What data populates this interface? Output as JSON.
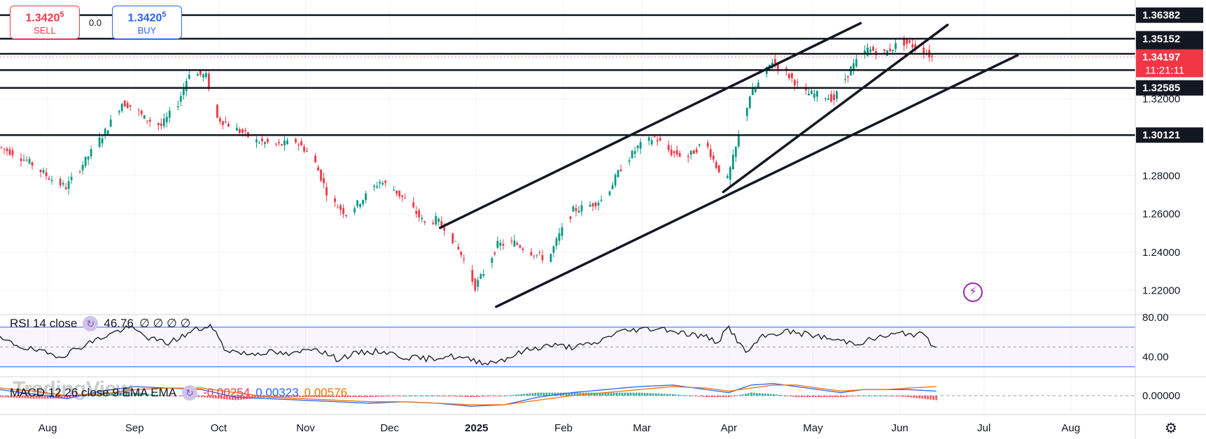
{
  "trade": {
    "sell_price": "1.3420",
    "sell_sup": "5",
    "sell_label": "SELL",
    "buy_price": "1.3420",
    "buy_sup": "5",
    "buy_label": "BUY",
    "spread": "0.0"
  },
  "watermark": "TradingView",
  "chart_data": {
    "type": "candlestick",
    "symbol_price_axis": {
      "ticks": [
        "1.22000",
        "1.24000",
        "1.26000",
        "1.28000",
        "1.32000"
      ],
      "tick_values": [
        1.22,
        1.24,
        1.26,
        1.28,
        1.32
      ],
      "ylim": [
        1.2075,
        1.371
      ]
    },
    "x_axis": {
      "labels": [
        "Aug",
        "Sep",
        "Oct",
        "Nov",
        "Dec",
        "2025",
        "Feb",
        "Mar",
        "Apr",
        "May",
        "Jun",
        "Jul",
        "Aug"
      ],
      "label_days": [
        17,
        48,
        78,
        109,
        139,
        170,
        201,
        229,
        260,
        290,
        321,
        351,
        382
      ],
      "xlim": [
        0,
        405
      ]
    },
    "horizontal_levels": [
      {
        "value": 1.36382,
        "label": "1.36382",
        "style": "dark"
      },
      {
        "value": 1.35152,
        "label": "1.35152",
        "style": "dark"
      },
      {
        "value": 1.34363,
        "label": "1.34363",
        "style": "dark"
      },
      {
        "value": 1.33515,
        "label": "",
        "style": "line-only"
      },
      {
        "value": 1.32585,
        "label": "1.32585",
        "style": "dark"
      },
      {
        "value": 1.30121,
        "label": "1.30121",
        "style": "dark"
      }
    ],
    "current_price": {
      "value": 1.34197,
      "label": "1.34197",
      "countdown": "11:21:11",
      "color": "#f23645"
    },
    "trendlines": [
      {
        "from": [
          157,
          1.2528
        ],
        "to": [
          307,
          1.3596
        ]
      },
      {
        "from": [
          177,
          1.2116
        ],
        "to": [
          363,
          1.3429
        ]
      },
      {
        "from": [
          258,
          1.2715
        ],
        "to": [
          338,
          1.3587
        ]
      }
    ],
    "price_path": {
      "days": [
        0,
        5,
        12,
        18,
        24,
        30,
        38,
        44,
        48,
        52,
        58,
        64,
        68,
        74,
        78,
        84,
        92,
        100,
        106,
        112,
        118,
        124,
        130,
        136,
        140,
        146,
        152,
        156,
        160,
        166,
        170,
        174,
        178,
        184,
        190,
        196,
        200,
        205,
        210,
        216,
        222,
        228,
        234,
        240,
        246,
        252,
        256,
        260,
        264,
        268,
        272,
        276,
        282,
        288,
        294,
        298,
        304,
        310,
        316,
        322,
        328,
        333
      ],
      "values": [
        1.295,
        1.292,
        1.286,
        1.279,
        1.274,
        1.286,
        1.303,
        1.318,
        1.316,
        1.31,
        1.306,
        1.318,
        1.334,
        1.332,
        1.31,
        1.305,
        1.298,
        1.296,
        1.298,
        1.29,
        1.268,
        1.26,
        1.268,
        1.277,
        1.274,
        1.266,
        1.255,
        1.257,
        1.252,
        1.236,
        1.222,
        1.232,
        1.244,
        1.245,
        1.24,
        1.236,
        1.249,
        1.262,
        1.264,
        1.268,
        1.284,
        1.295,
        1.3,
        1.292,
        1.29,
        1.298,
        1.285,
        1.278,
        1.3,
        1.322,
        1.33,
        1.34,
        1.332,
        1.323,
        1.322,
        1.32,
        1.336,
        1.346,
        1.344,
        1.35,
        1.347,
        1.342
      ]
    },
    "rsi": {
      "legend": "RSI 14 close",
      "value": "46.76",
      "extra": "∅ ∅ ∅ ∅",
      "ticks": [
        "80.00",
        "40.00"
      ],
      "tick_values": [
        80,
        40
      ],
      "ylim": [
        20,
        82
      ],
      "bands": [
        70,
        30
      ],
      "mid": 50,
      "days": [
        0,
        8,
        16,
        22,
        30,
        40,
        46,
        54,
        60,
        66,
        70,
        76,
        80,
        88,
        96,
        104,
        112,
        120,
        128,
        136,
        144,
        152,
        160,
        168,
        174,
        180,
        188,
        196,
        204,
        212,
        220,
        228,
        236,
        244,
        252,
        256,
        260,
        266,
        272,
        280,
        290,
        298,
        306,
        314,
        322,
        330,
        334
      ],
      "values": [
        58,
        50,
        44,
        41,
        52,
        64,
        70,
        58,
        54,
        62,
        68,
        70,
        48,
        43,
        45,
        42,
        50,
        38,
        44,
        46,
        40,
        38,
        41,
        37,
        34,
        38,
        47,
        52,
        50,
        53,
        65,
        68,
        69,
        64,
        60,
        55,
        70,
        44,
        60,
        66,
        62,
        57,
        54,
        60,
        64,
        62,
        47
      ]
    },
    "macd": {
      "legend": "MACD 12 26 close 9 EMA EMA",
      "value_hist": "-0.00254",
      "value_macd": "0.00323",
      "value_signal": "0.00576",
      "ticks": [
        "0.00000"
      ],
      "tick_values": [
        0
      ],
      "ylim": [
        -0.012,
        0.012
      ],
      "days": [
        0,
        12,
        24,
        36,
        48,
        60,
        72,
        84,
        96,
        108,
        120,
        132,
        144,
        156,
        168,
        180,
        192,
        204,
        216,
        228,
        240,
        252,
        260,
        268,
        276,
        284,
        292,
        300,
        308,
        316,
        324,
        334
      ],
      "macd_values": [
        0.004,
        0.001,
        -0.002,
        0.003,
        0.006,
        0.005,
        0.004,
        -0.001,
        -0.002,
        -0.003,
        -0.004,
        -0.005,
        -0.004,
        -0.005,
        -0.007,
        -0.006,
        -0.001,
        0.002,
        0.004,
        0.006,
        0.007,
        0.004,
        0.002,
        0.007,
        0.008,
        0.006,
        0.004,
        0.002,
        0.004,
        0.004,
        0.004,
        0.003
      ],
      "signal_values": [
        0.005,
        0.003,
        0.0,
        0.001,
        0.004,
        0.005,
        0.005,
        0.002,
        -0.001,
        -0.002,
        -0.003,
        -0.004,
        -0.004,
        -0.005,
        -0.006,
        -0.006,
        -0.003,
        0.0,
        0.002,
        0.004,
        0.006,
        0.005,
        0.003,
        0.005,
        0.007,
        0.007,
        0.005,
        0.003,
        0.004,
        0.004,
        0.005,
        0.006
      ]
    }
  },
  "colors": {
    "up": "#089981",
    "down": "#f23645",
    "macd_line": "#2962ff",
    "signal_line": "#ff6d00",
    "rsi_line": "#131722",
    "band": "#2962ff"
  },
  "icons": {
    "bolt": "lightning-bolt-icon",
    "settings": "settings-gear-icon",
    "rsi_circle": "indicator-source-icon",
    "macd_circle": "indicator-source-icon"
  }
}
